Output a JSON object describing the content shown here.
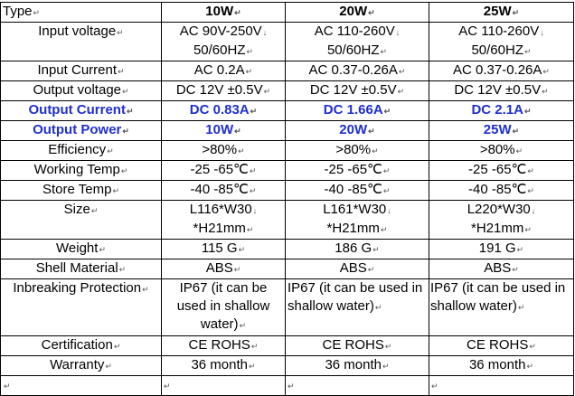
{
  "columns": [
    "10W",
    "20W",
    "25W"
  ],
  "mark": "↵",
  "soft_break": "↓",
  "rows": [
    {
      "label": "Type",
      "values": [
        "10W",
        "20W",
        "25W"
      ]
    },
    {
      "label": "Input voltage",
      "values": [
        [
          "AC 90V-250V",
          "50/60HZ"
        ],
        [
          "AC 110-260V",
          "50/60HZ"
        ],
        [
          "AC 110-260V",
          "50/60HZ"
        ]
      ]
    },
    {
      "label": "Input Current",
      "values": [
        "AC 0.2A",
        "AC 0.37-0.26A",
        "AC 0.37-0.26A"
      ]
    },
    {
      "label": "Output voltage",
      "values": [
        "DC 12V ±0.5V",
        "DC 12V ±0.5V",
        "DC 12V ±0.5V"
      ]
    },
    {
      "label": "Output Current",
      "values": [
        "DC 0.83A",
        "DC 1.66A",
        "DC 2.1A"
      ]
    },
    {
      "label": "Output Power",
      "values": [
        "10W",
        "20W",
        "25W"
      ]
    },
    {
      "label": "Efficiency",
      "values": [
        ">80%",
        ">80%",
        ">80%"
      ]
    },
    {
      "label": "Working Temp",
      "values": [
        "-25 -65℃",
        "-25 -65℃",
        "-25 -65℃"
      ]
    },
    {
      "label": "Store Temp",
      "values": [
        "-40 -85℃",
        "-40 -85℃",
        "-40 -85℃"
      ]
    },
    {
      "label": "Size",
      "values": [
        [
          "L116*W30",
          "*H21mm"
        ],
        [
          "L161*W30",
          "*H21mm"
        ],
        [
          "L220*W30",
          "*H21mm"
        ]
      ]
    },
    {
      "label": "Weight",
      "values": [
        "115 G",
        "186 G",
        "191 G"
      ]
    },
    {
      "label": "Shell Material",
      "values": [
        "ABS",
        "ABS",
        "ABS"
      ]
    },
    {
      "label": "Inbreaking Protection",
      "values": [
        "IP67 (it can be used in shallow water)",
        "IP67 (it can be used in shallow water)",
        "IP67 (it can be used in shallow water)"
      ]
    },
    {
      "label": "Certification",
      "values": [
        "CE ROHS",
        "CE ROHS",
        "CE ROHS"
      ]
    },
    {
      "label": "Warranty",
      "values": [
        "36 month",
        "36 month",
        "36 month"
      ]
    },
    {
      "label": "",
      "values": [
        "",
        "",
        ""
      ]
    }
  ],
  "colors": {
    "highlight": "#1f2fd0",
    "border": "#000000",
    "text": "#000000"
  }
}
